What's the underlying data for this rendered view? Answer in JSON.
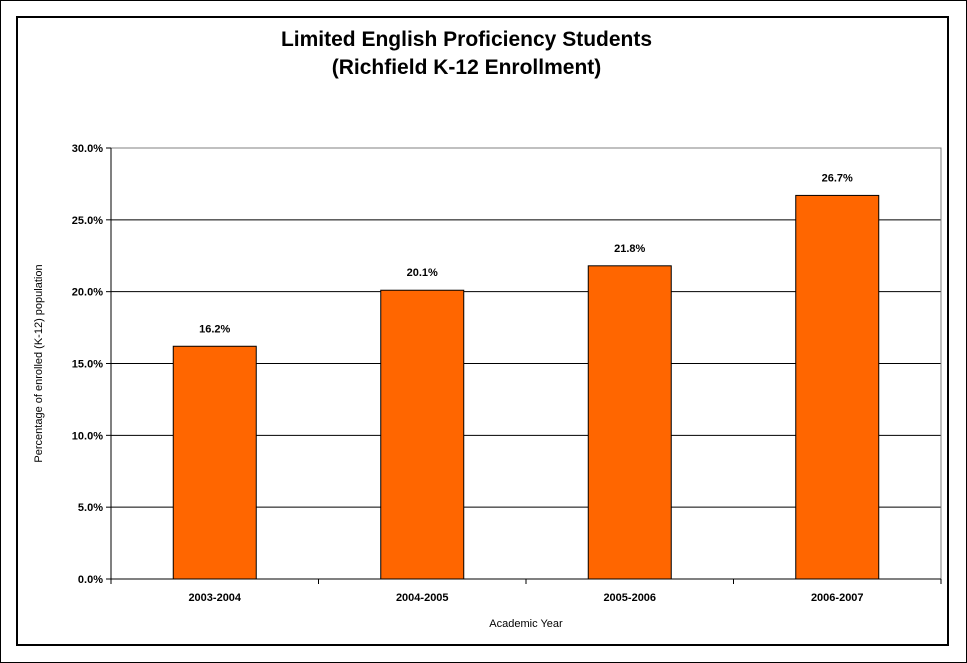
{
  "chart_data": {
    "type": "bar",
    "title": "Limited English Proficiency Students",
    "subtitle": "(Richfield K-12 Enrollment)",
    "xlabel": "Academic Year",
    "ylabel": "Percentage of enrolled (K-12) population",
    "categories": [
      "2003-2004",
      "2004-2005",
      "2005-2006",
      "2006-2007"
    ],
    "values": [
      16.2,
      20.1,
      21.8,
      26.7
    ],
    "data_labels": [
      "16.2%",
      "20.1%",
      "21.8%",
      "26.7%"
    ],
    "ylim": [
      0,
      30
    ],
    "yticks": [
      0,
      5,
      10,
      15,
      20,
      25,
      30
    ],
    "ytick_labels": [
      "0.0%",
      "5.0%",
      "10.0%",
      "15.0%",
      "20.0%",
      "25.0%",
      "30.0%"
    ],
    "grid": true,
    "legend": "none",
    "bar_color": "#FF6600"
  }
}
